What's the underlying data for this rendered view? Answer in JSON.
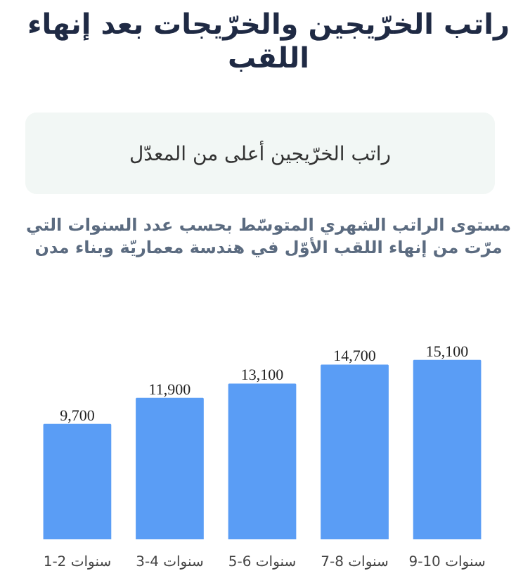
{
  "chart_data": {
    "type": "bar",
    "title": "راتب الخرّيجين والخرّيجات بعد إنهاء اللقب",
    "subtitle": "مستوى الراتب الشهري المتوسّط بحسب عدد السنوات التي مرّت من إنهاء اللقب الأوّل في هندسة معماريّة وبناء مدن",
    "annotations": [
      "راتب الخرّيجين أعلى من المعدّل"
    ],
    "categories": [
      "1-2 سنوات",
      "3-4 سنوات",
      "5-6 سنوات",
      "7-8 سنوات",
      "9-10 سنوات"
    ],
    "values": [
      9700,
      11900,
      13100,
      14700,
      15100
    ],
    "value_labels": [
      "9,700",
      "11,900",
      "13,100",
      "14,700",
      "15,100"
    ],
    "color": "#5a9df5",
    "grid": false
  }
}
